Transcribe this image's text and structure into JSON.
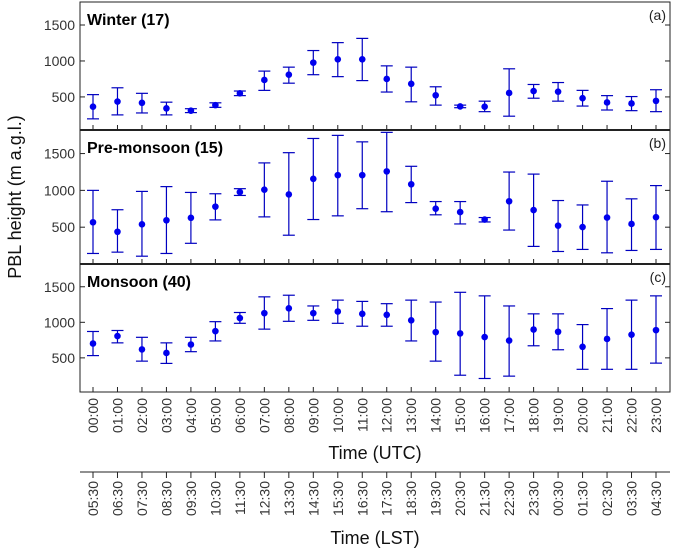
{
  "chart_data": {
    "type": "scatter",
    "ylabel": "PBL height (m a.g.l.)",
    "xlabel": "Time (UTC)",
    "xlabel2": "Time (LST)",
    "x_utc": [
      "00:00",
      "01:00",
      "02:00",
      "03:00",
      "04:00",
      "05:00",
      "06:00",
      "07:00",
      "08:00",
      "09:00",
      "10:00",
      "11:00",
      "12:00",
      "13:00",
      "14:00",
      "15:00",
      "16:00",
      "17:00",
      "18:00",
      "19:00",
      "20:00",
      "21:00",
      "22:00",
      "23:00"
    ],
    "x_lst": [
      "05:30",
      "06:30",
      "07:30",
      "08:30",
      "09:30",
      "10:30",
      "11:30",
      "12:30",
      "13:30",
      "14:30",
      "15:30",
      "16:30",
      "17:30",
      "18:30",
      "19:30",
      "20:30",
      "21:30",
      "22:30",
      "23:30",
      "00:30",
      "01:30",
      "02:30",
      "03:30",
      "04:30"
    ],
    "marker_color": "#0000ee",
    "errorbar_color": "#0000c0",
    "panels": [
      {
        "title": "Winter (17)",
        "tag": "(a)",
        "ylim": [
          40,
          1820
        ],
        "yticks": [
          500,
          1000,
          1500
        ],
        "mean": [
          364,
          436,
          418,
          341,
          309,
          386,
          550,
          736,
          809,
          977,
          1023,
          1023,
          750,
          682,
          523,
          368,
          364,
          555,
          582,
          573,
          482,
          423,
          409,
          445
        ],
        "low": [
          195,
          250,
          277,
          250,
          282,
          355,
          518,
          591,
          691,
          809,
          782,
          727,
          568,
          432,
          386,
          350,
          295,
          232,
          482,
          441,
          373,
          318,
          309,
          295
        ],
        "high": [
          532,
          627,
          550,
          427,
          336,
          418,
          582,
          859,
          914,
          1145,
          1255,
          1314,
          932,
          914,
          641,
          386,
          441,
          891,
          673,
          700,
          591,
          518,
          505,
          600
        ]
      },
      {
        "title": "Pre-monsoon (15)",
        "tag": "(b)",
        "ylim": [
          0,
          1820
        ],
        "yticks": [
          500,
          1000,
          1500
        ],
        "mean": [
          567,
          438,
          539,
          594,
          627,
          779,
          977,
          1009,
          945,
          1157,
          1207,
          1207,
          1258,
          1083,
          751,
          705,
          604,
          852,
          733,
          521,
          502,
          631,
          544,
          636
        ],
        "low": [
          143,
          161,
          106,
          143,
          281,
          599,
          931,
          640,
          391,
          604,
          654,
          751,
          710,
          834,
          668,
          544,
          571,
          461,
          239,
          170,
          198,
          152,
          184,
          198
        ],
        "high": [
          1000,
          737,
          986,
          1051,
          972,
          954,
          1023,
          1373,
          1512,
          1705,
          1747,
          1659,
          1788,
          1327,
          848,
          848,
          631,
          1249,
          1221,
          862,
          802,
          1124,
          885,
          1065
        ]
      },
      {
        "title": "Monsoon (40)",
        "tag": "(c)",
        "ylim": [
          20,
          1820
        ],
        "yticks": [
          500,
          1000,
          1500
        ],
        "mean": [
          702,
          807,
          619,
          569,
          688,
          876,
          1060,
          1129,
          1197,
          1129,
          1152,
          1119,
          1106,
          1028,
          862,
          844,
          793,
          743,
          899,
          867,
          656,
          766,
          826,
          890
        ],
        "low": [
          532,
          711,
          454,
          422,
          587,
          738,
          986,
          904,
          1014,
          1028,
          986,
          945,
          945,
          738,
          454,
          256,
          210,
          243,
          670,
          614,
          339,
          339,
          339,
          426
        ],
        "high": [
          871,
          885,
          789,
          711,
          789,
          1009,
          1138,
          1358,
          1381,
          1230,
          1312,
          1294,
          1262,
          1312,
          1285,
          1422,
          1372,
          1230,
          1119,
          1119,
          968,
          1193,
          1312,
          1372
        ]
      }
    ]
  }
}
